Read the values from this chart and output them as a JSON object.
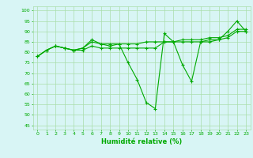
{
  "x": [
    0,
    1,
    2,
    3,
    4,
    5,
    6,
    7,
    8,
    9,
    10,
    11,
    12,
    13,
    14,
    15,
    16,
    17,
    18,
    19,
    20,
    21,
    22,
    23
  ],
  "line1": [
    78,
    81,
    83,
    82,
    81,
    82,
    86,
    84,
    83,
    84,
    75,
    67,
    56,
    53,
    89,
    85,
    74,
    66,
    85,
    86,
    86,
    90,
    95,
    90
  ],
  "line2": [
    78,
    81,
    83,
    82,
    81,
    82,
    85,
    84,
    84,
    84,
    84,
    84,
    85,
    85,
    85,
    85,
    86,
    86,
    86,
    87,
    87,
    88,
    91,
    91
  ],
  "line3": [
    78,
    81,
    83,
    82,
    81,
    81,
    83,
    82,
    82,
    82,
    82,
    82,
    82,
    82,
    85,
    85,
    85,
    85,
    85,
    85,
    86,
    87,
    90,
    90
  ],
  "xlabel": "Humidité relative (%)",
  "yticks": [
    45,
    50,
    55,
    60,
    65,
    70,
    75,
    80,
    85,
    90,
    95,
    100
  ],
  "xticks": [
    0,
    1,
    2,
    3,
    4,
    5,
    6,
    7,
    8,
    9,
    10,
    11,
    12,
    13,
    14,
    15,
    16,
    17,
    18,
    19,
    20,
    21,
    22,
    23
  ],
  "ylim": [
    43,
    102
  ],
  "xlim": [
    -0.5,
    23.5
  ],
  "line_color": "#00aa00",
  "bg_color": "#d8f5f5",
  "grid_color": "#aaddaa",
  "marker": "+",
  "markersize": 3.0,
  "linewidth": 0.8
}
